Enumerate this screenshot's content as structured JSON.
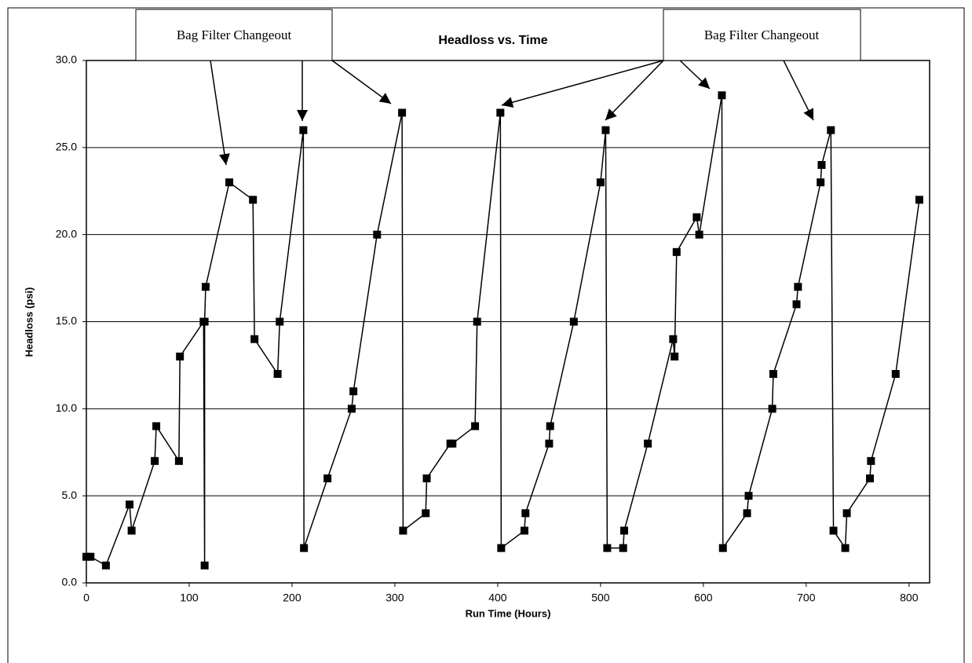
{
  "chart_data": {
    "type": "line",
    "title": "Headloss vs. Time",
    "x_label": "Run Time (Hours)",
    "y_label": "Headloss (psi)",
    "annotations": [
      "Bag Filter Changeout",
      "Bag Filter Changeout"
    ],
    "x": [
      0,
      4,
      19,
      42,
      44,
      66.5,
      68,
      90,
      91,
      114,
      115,
      115,
      116,
      139,
      162,
      163.5,
      186,
      188,
      211,
      211.6,
      234.5,
      258,
      259.7,
      282.7,
      307,
      308,
      330,
      331,
      354,
      356,
      378,
      380,
      402.6,
      403.4,
      426,
      427,
      450,
      451,
      474,
      500,
      505,
      506.5,
      522,
      523,
      546,
      570.6,
      572,
      574,
      593.5,
      596,
      618,
      619,
      642.5,
      644,
      667,
      668,
      690.6,
      692,
      714,
      715,
      724,
      726.5,
      738,
      739.5,
      762,
      763,
      787,
      810
    ],
    "series": [
      {
        "name": "Headloss",
        "color": "#000000",
        "values": [
          1.5,
          1.5,
          1,
          4.5,
          3,
          7,
          9,
          7,
          13,
          15,
          1,
          15,
          17,
          23,
          22,
          14,
          12,
          15,
          26,
          2,
          6,
          10,
          11,
          20,
          27,
          3,
          4,
          6,
          8,
          8,
          9,
          15,
          27,
          2,
          3,
          4,
          8,
          9,
          15,
          23,
          26,
          2,
          2,
          3,
          8,
          14,
          13,
          19,
          21,
          20,
          28,
          2,
          4,
          5,
          10,
          12,
          16,
          17,
          23,
          24,
          26,
          3,
          2,
          4,
          6,
          7,
          12,
          22
        ]
      }
    ],
    "xlim": [
      0,
      820
    ],
    "xticks": [
      0,
      100,
      200,
      300,
      400,
      500,
      600,
      700,
      800
    ],
    "ylim": [
      0,
      30
    ],
    "yticks": [
      {
        "value": 0,
        "label": "0.0"
      },
      {
        "value": 5,
        "label": "5.0"
      },
      {
        "value": 10,
        "label": "10.0"
      },
      {
        "value": 15,
        "label": "15.0"
      },
      {
        "value": 20,
        "label": "20.0"
      },
      {
        "value": 25,
        "label": "25.0"
      },
      {
        "value": 30,
        "label": "30.0"
      }
    ],
    "grid": true
  }
}
